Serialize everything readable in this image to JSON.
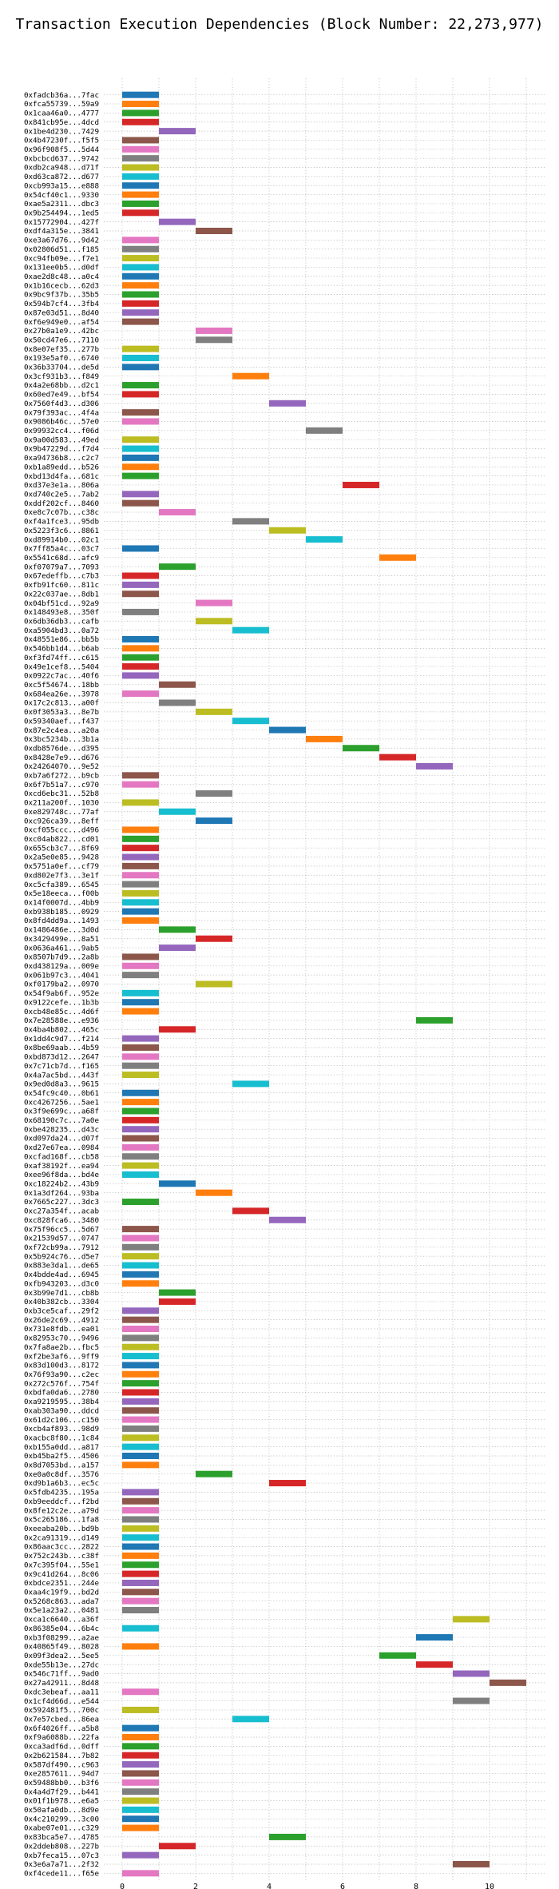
{
  "chart_data": {
    "type": "bar",
    "orientation": "horizontal",
    "title": "Transaction Execution Dependencies (Block Number: 22,273,977)",
    "xlabel": "",
    "ylabel": "",
    "xlim": [
      -0.5,
      11.5
    ],
    "xticks": [
      0,
      2,
      4,
      6,
      8,
      10
    ],
    "grid": true,
    "palette": [
      "#1f77b4",
      "#ff7f0e",
      "#2ca02c",
      "#d62728",
      "#9467bd",
      "#8c564b",
      "#e377c2",
      "#7f7f7f",
      "#bcbd22",
      "#17becf"
    ],
    "transactions": [
      {
        "label": "0xfadcb36a...7fac",
        "start": 0
      },
      {
        "label": "0xfca55739...59a9",
        "start": 0
      },
      {
        "label": "0x1caa46a0...4777",
        "start": 0
      },
      {
        "label": "0x841cb95e...4dcd",
        "start": 0
      },
      {
        "label": "0x1be4d230...7429",
        "start": 1
      },
      {
        "label": "0x4b47230f...f5f5",
        "start": 0
      },
      {
        "label": "0x96f908f5...5d44",
        "start": 0
      },
      {
        "label": "0xbcbcd637...9742",
        "start": 0
      },
      {
        "label": "0xdb2ca948...d71f",
        "start": 0
      },
      {
        "label": "0xd63ca872...d677",
        "start": 0
      },
      {
        "label": "0xcb993a15...e888",
        "start": 0
      },
      {
        "label": "0x54cf40c1...9330",
        "start": 0
      },
      {
        "label": "0xae5a2311...dbc3",
        "start": 0
      },
      {
        "label": "0x9b254494...1ed5",
        "start": 0
      },
      {
        "label": "0x15772904...427f",
        "start": 1
      },
      {
        "label": "0xdf4a315e...3841",
        "start": 2
      },
      {
        "label": "0xe3a67d76...9d42",
        "start": 0
      },
      {
        "label": "0x02806d51...f185",
        "start": 0
      },
      {
        "label": "0xc94fb09e...f7e1",
        "start": 0
      },
      {
        "label": "0x131ee0b5...d0df",
        "start": 0
      },
      {
        "label": "0xae2d8c48...a0c4",
        "start": 0
      },
      {
        "label": "0x1b16cecb...62d3",
        "start": 0
      },
      {
        "label": "0x9bc9f37b...35b5",
        "start": 0
      },
      {
        "label": "0x594b7cf4...3fb4",
        "start": 0
      },
      {
        "label": "0x87e03d51...8d40",
        "start": 0
      },
      {
        "label": "0xf6e949e0...af54",
        "start": 0
      },
      {
        "label": "0x27b0a1e9...42bc",
        "start": 2
      },
      {
        "label": "0x50cd47e6...7110",
        "start": 2
      },
      {
        "label": "0x8e07ef35...277b",
        "start": 0
      },
      {
        "label": "0x193e5af0...6740",
        "start": 0
      },
      {
        "label": "0x36b33704...de5d",
        "start": 0
      },
      {
        "label": "0x3cf931b3...f849",
        "start": 3
      },
      {
        "label": "0x4a2e68bb...d2c1",
        "start": 0
      },
      {
        "label": "0x60ed7e49...bf54",
        "start": 0
      },
      {
        "label": "0x7560f4d3...d306",
        "start": 4
      },
      {
        "label": "0x79f393ac...4f4a",
        "start": 0
      },
      {
        "label": "0x9086b46c...57e0",
        "start": 0
      },
      {
        "label": "0x99932cc4...f06d",
        "start": 5
      },
      {
        "label": "0x9a00d583...49ed",
        "start": 0
      },
      {
        "label": "0x9b47229d...f7d4",
        "start": 0
      },
      {
        "label": "0xa94736b8...c2c7",
        "start": 0
      },
      {
        "label": "0xb1a89edd...b526",
        "start": 0
      },
      {
        "label": "0xbd13d4fa...681c",
        "start": 0
      },
      {
        "label": "0xd37e3e1a...806a",
        "start": 6
      },
      {
        "label": "0xd740c2e5...7ab2",
        "start": 0
      },
      {
        "label": "0xddf202cf...8460",
        "start": 0
      },
      {
        "label": "0xe8c7c07b...c38c",
        "start": 1
      },
      {
        "label": "0xf4a1fce3...95db",
        "start": 3
      },
      {
        "label": "0x5223f3c6...8861",
        "start": 4
      },
      {
        "label": "0xd89914b0...02c1",
        "start": 5
      },
      {
        "label": "0x7ff85a4c...03c7",
        "start": 0
      },
      {
        "label": "0x5541c68d...afc9",
        "start": 7
      },
      {
        "label": "0xf07079a7...7093",
        "start": 1
      },
      {
        "label": "0x67edeffb...c7b3",
        "start": 0
      },
      {
        "label": "0xfb91fc60...811c",
        "start": 0
      },
      {
        "label": "0x22c037ae...8db1",
        "start": 0
      },
      {
        "label": "0x04bf51cd...92a9",
        "start": 2
      },
      {
        "label": "0x148493e8...350f",
        "start": 0
      },
      {
        "label": "0x6db36db3...cafb",
        "start": 2
      },
      {
        "label": "0xa5904bd3...0a72",
        "start": 3
      },
      {
        "label": "0x48551e86...bb5b",
        "start": 0
      },
      {
        "label": "0x546bb1d4...b6ab",
        "start": 0
      },
      {
        "label": "0xf3fd74ff...c615",
        "start": 0
      },
      {
        "label": "0x49e1cef8...5404",
        "start": 0
      },
      {
        "label": "0x0922c7ac...40f6",
        "start": 0
      },
      {
        "label": "0xc5f54674...18bb",
        "start": 1
      },
      {
        "label": "0x684ea26e...3978",
        "start": 0
      },
      {
        "label": "0x17c2c813...a00f",
        "start": 1
      },
      {
        "label": "0x0f3053a3...8e7b",
        "start": 2
      },
      {
        "label": "0x59340aef...f437",
        "start": 3
      },
      {
        "label": "0x87e2c4ea...a20a",
        "start": 4
      },
      {
        "label": "0x3bc5234b...3b1a",
        "start": 5
      },
      {
        "label": "0xdb8576de...d395",
        "start": 6
      },
      {
        "label": "0x8428e7e9...d676",
        "start": 7
      },
      {
        "label": "0x24264070...9e52",
        "start": 8
      },
      {
        "label": "0xb7a6f272...b9cb",
        "start": 0
      },
      {
        "label": "0x6f7b51a7...c970",
        "start": 0
      },
      {
        "label": "0xcd6ebc31...52b8",
        "start": 2
      },
      {
        "label": "0x211a200f...1030",
        "start": 0
      },
      {
        "label": "0xe829748c...77af",
        "start": 1
      },
      {
        "label": "0xc926ca39...8eff",
        "start": 2
      },
      {
        "label": "0xcf055ccc...d496",
        "start": 0
      },
      {
        "label": "0xc04ab822...cd01",
        "start": 0
      },
      {
        "label": "0x655cb3c7...8f69",
        "start": 0
      },
      {
        "label": "0x2a5e0e85...9428",
        "start": 0
      },
      {
        "label": "0x5751a0ef...cf79",
        "start": 0
      },
      {
        "label": "0xd802e7f3...3e1f",
        "start": 0
      },
      {
        "label": "0xc5cfa389...6545",
        "start": 0
      },
      {
        "label": "0x5e18eeca...f00b",
        "start": 0
      },
      {
        "label": "0x14f0007d...4bb9",
        "start": 0
      },
      {
        "label": "0xb938b185...0929",
        "start": 0
      },
      {
        "label": "0x8fd4dd9a...1493",
        "start": 0
      },
      {
        "label": "0x1486486e...3d0d",
        "start": 1
      },
      {
        "label": "0x3429499e...8a51",
        "start": 2
      },
      {
        "label": "0x0636a461...9ab5",
        "start": 1
      },
      {
        "label": "0x8507b7d9...2a8b",
        "start": 0
      },
      {
        "label": "0xd438129a...009e",
        "start": 0
      },
      {
        "label": "0x061b97c3...4041",
        "start": 0
      },
      {
        "label": "0xf0179ba2...0970",
        "start": 2
      },
      {
        "label": "0x54f9ab6f...952e",
        "start": 0
      },
      {
        "label": "0x9122cefe...1b3b",
        "start": 0
      },
      {
        "label": "0xcb48e85c...4d6f",
        "start": 0
      },
      {
        "label": "0x7e28588e...e936",
        "start": 8
      },
      {
        "label": "0x4ba4b802...465c",
        "start": 1
      },
      {
        "label": "0x1dd4c9d7...f214",
        "start": 0
      },
      {
        "label": "0x8be69aab...4b59",
        "start": 0
      },
      {
        "label": "0xbd873d12...2647",
        "start": 0
      },
      {
        "label": "0x7c71cb7d...f165",
        "start": 0
      },
      {
        "label": "0x4a7ac5bd...443f",
        "start": 0
      },
      {
        "label": "0x9ed0d8a3...9615",
        "start": 3
      },
      {
        "label": "0x54fc9c40...0b61",
        "start": 0
      },
      {
        "label": "0xc4267256...5ae1",
        "start": 0
      },
      {
        "label": "0x3f9e699c...a68f",
        "start": 0
      },
      {
        "label": "0x68190c7c...7a0e",
        "start": 0
      },
      {
        "label": "0xbe428235...d43c",
        "start": 0
      },
      {
        "label": "0xd097da24...d07f",
        "start": 0
      },
      {
        "label": "0xd27e67ea...0984",
        "start": 0
      },
      {
        "label": "0xcfad168f...cb58",
        "start": 0
      },
      {
        "label": "0xaf38192f...ea94",
        "start": 0
      },
      {
        "label": "0xee96f8da...bd4e",
        "start": 0
      },
      {
        "label": "0xc18224b2...43b9",
        "start": 1
      },
      {
        "label": "0x1a3df264...93ba",
        "start": 2
      },
      {
        "label": "0x7665c227...3dc3",
        "start": 0
      },
      {
        "label": "0xc27a354f...acab",
        "start": 3
      },
      {
        "label": "0xc828fca6...3480",
        "start": 4
      },
      {
        "label": "0x75f96cc5...5d67",
        "start": 0
      },
      {
        "label": "0x21539d57...0747",
        "start": 0
      },
      {
        "label": "0xf72cb99a...7912",
        "start": 0
      },
      {
        "label": "0x5b924c76...d5e7",
        "start": 0
      },
      {
        "label": "0x883e3da1...de65",
        "start": 0
      },
      {
        "label": "0x4bdde4ad...6945",
        "start": 0
      },
      {
        "label": "0xfb943203...d3c0",
        "start": 0
      },
      {
        "label": "0x3b99e7d1...cb8b",
        "start": 1
      },
      {
        "label": "0x40b382cb...3304",
        "start": 1
      },
      {
        "label": "0xb3ce5caf...29f2",
        "start": 0
      },
      {
        "label": "0x26de2c69...4912",
        "start": 0
      },
      {
        "label": "0x731e8fdb...ea01",
        "start": 0
      },
      {
        "label": "0x82953c70...9496",
        "start": 0
      },
      {
        "label": "0x7fa8ae2b...fbc5",
        "start": 0
      },
      {
        "label": "0xf2be3af6...9ff9",
        "start": 0
      },
      {
        "label": "0x83d100d3...8172",
        "start": 0
      },
      {
        "label": "0x76f93a90...c2ec",
        "start": 0
      },
      {
        "label": "0x272c576f...754f",
        "start": 0
      },
      {
        "label": "0xbdfa0da6...2780",
        "start": 0
      },
      {
        "label": "0xa9219595...38b4",
        "start": 0
      },
      {
        "label": "0xab303a90...ddcd",
        "start": 0
      },
      {
        "label": "0x61d2c106...c150",
        "start": 0
      },
      {
        "label": "0xcb4af893...98d9",
        "start": 0
      },
      {
        "label": "0xacbc8f80...1c84",
        "start": 0
      },
      {
        "label": "0xb155a0dd...a817",
        "start": 0
      },
      {
        "label": "0xb45ba2f5...4506",
        "start": 0
      },
      {
        "label": "0x8d7053bd...a157",
        "start": 0
      },
      {
        "label": "0xe0a0c8df...3576",
        "start": 2
      },
      {
        "label": "0xd9b1a6b3...ec5c",
        "start": 4
      },
      {
        "label": "0x5fdb4235...195a",
        "start": 0
      },
      {
        "label": "0xb9eeddcf...f2bd",
        "start": 0
      },
      {
        "label": "0x8fe12c2e...a79d",
        "start": 0
      },
      {
        "label": "0x5c265186...1fa8",
        "start": 0
      },
      {
        "label": "0xeeaba20b...bd9b",
        "start": 0
      },
      {
        "label": "0x2ca91319...d149",
        "start": 0
      },
      {
        "label": "0x86aac3cc...2822",
        "start": 0
      },
      {
        "label": "0x752c243b...c38f",
        "start": 0
      },
      {
        "label": "0x7c395f04...55e1",
        "start": 0
      },
      {
        "label": "0x9c41d264...8c06",
        "start": 0
      },
      {
        "label": "0xbdce2351...244e",
        "start": 0
      },
      {
        "label": "0xaa4c19f9...bd2d",
        "start": 0
      },
      {
        "label": "0x5268c863...ada7",
        "start": 0
      },
      {
        "label": "0x5e1a23a2...0481",
        "start": 0
      },
      {
        "label": "0xca1c6640...a36f",
        "start": 9
      },
      {
        "label": "0x86385e04...6b4c",
        "start": 0
      },
      {
        "label": "0xb3f08299...a2ae",
        "start": 8
      },
      {
        "label": "0x40865f49...8028",
        "start": 0
      },
      {
        "label": "0x09f3dea2...5ee5",
        "start": 7
      },
      {
        "label": "0xde55b13e...27dc",
        "start": 8
      },
      {
        "label": "0x546c71ff...9ad0",
        "start": 9
      },
      {
        "label": "0x27a42911...8d48",
        "start": 10
      },
      {
        "label": "0xdc3ebeaf...aa11",
        "start": 0
      },
      {
        "label": "0x1cf4d66d...e544",
        "start": 9
      },
      {
        "label": "0x592481f5...700c",
        "start": 0
      },
      {
        "label": "0x7e57cbed...86ea",
        "start": 3
      },
      {
        "label": "0x6f4026ff...a5b8",
        "start": 0
      },
      {
        "label": "0xf9a6088b...22fa",
        "start": 0
      },
      {
        "label": "0xca3adf6d...0dff",
        "start": 0
      },
      {
        "label": "0x2b621584...7b82",
        "start": 0
      },
      {
        "label": "0x587df490...c963",
        "start": 0
      },
      {
        "label": "0xe2857611...94d7",
        "start": 0
      },
      {
        "label": "0x59488bb0...b3f6",
        "start": 0
      },
      {
        "label": "0x4a4d7f29...b441",
        "start": 0
      },
      {
        "label": "0x01f1b978...e6a5",
        "start": 0
      },
      {
        "label": "0x50afa0db...8d9e",
        "start": 0
      },
      {
        "label": "0x4c210299...3c00",
        "start": 0
      },
      {
        "label": "0xabe07e01...c329",
        "start": 0
      },
      {
        "label": "0x83bca5e7...4785",
        "start": 4
      },
      {
        "label": "0x2ddeb808...227b",
        "start": 1
      },
      {
        "label": "0xb7feca15...07c3",
        "start": 0
      },
      {
        "label": "0x3e6a7a71...2f32",
        "start": 9
      },
      {
        "label": "0xf4cede11...f65e",
        "start": 0
      }
    ]
  }
}
